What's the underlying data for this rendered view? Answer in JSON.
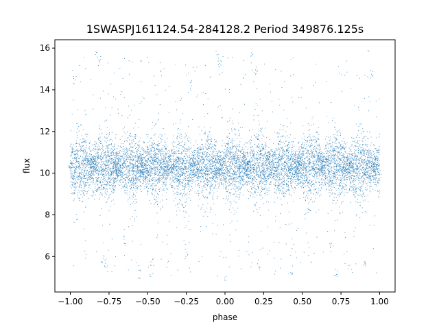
{
  "chart_data": {
    "type": "scatter",
    "title": "1SWASPJ161124.54-284128.2 Period 349876.125s",
    "xlabel": "phase",
    "ylabel": "flux",
    "xlim": [
      -1.1,
      1.1
    ],
    "ylim": [
      4.3,
      16.4
    ],
    "xticks": [
      -1.0,
      -0.75,
      -0.5,
      -0.25,
      0.0,
      0.25,
      0.5,
      0.75,
      1.0
    ],
    "xtick_labels": [
      "−1.00",
      "−0.75",
      "−0.50",
      "−0.25",
      "0.00",
      "0.25",
      "0.50",
      "0.75",
      "1.00"
    ],
    "yticks": [
      6,
      8,
      10,
      12,
      14,
      16
    ],
    "ytick_labels": [
      "6",
      "8",
      "10",
      "12",
      "14",
      "16"
    ],
    "grid": false,
    "legend": "none",
    "series": [
      {
        "color": "#1f77b4",
        "marker": "point",
        "x_range": [
          -1.0,
          1.0
        ],
        "baseline_flux": 10.3,
        "typical_flux_range": [
          8.5,
          12.3
        ],
        "full_flux_range": [
          4.8,
          15.9
        ],
        "points": [
          [
            -1.0,
            10.3
          ],
          [
            -0.97,
            14.5
          ],
          [
            -0.95,
            9.8
          ],
          [
            -0.91,
            11.6
          ],
          [
            -0.85,
            8.9
          ],
          [
            -0.83,
            15.8
          ],
          [
            -0.81,
            15.4
          ],
          [
            -0.79,
            5.9
          ],
          [
            -0.77,
            5.6
          ],
          [
            -0.76,
            10.6
          ],
          [
            -0.72,
            9.4
          ],
          [
            -0.65,
            6.7
          ],
          [
            -0.6,
            10.1
          ],
          [
            -0.55,
            5.2
          ],
          [
            -0.53,
            11.3
          ],
          [
            -0.47,
            5.8
          ],
          [
            -0.44,
            8.7
          ],
          [
            -0.4,
            10.4
          ],
          [
            -0.3,
            9.7
          ],
          [
            -0.25,
            6.1
          ],
          [
            -0.22,
            14.2
          ],
          [
            -0.2,
            10.9
          ],
          [
            -0.05,
            15.7
          ],
          [
            -0.03,
            15.2
          ],
          [
            0.0,
            4.9
          ],
          [
            0.02,
            10.2
          ],
          [
            0.1,
            9.6
          ],
          [
            0.17,
            15.8
          ],
          [
            0.2,
            14.9
          ],
          [
            0.22,
            5.6
          ],
          [
            0.27,
            10.8
          ],
          [
            0.35,
            9.2
          ],
          [
            0.43,
            5.3
          ],
          [
            0.48,
            10.5
          ],
          [
            0.55,
            8.3
          ],
          [
            0.6,
            11.7
          ],
          [
            0.68,
            6.4
          ],
          [
            0.72,
            5.3
          ],
          [
            0.78,
            10.0
          ],
          [
            0.84,
            9.1
          ],
          [
            0.9,
            5.5
          ],
          [
            0.93,
            15.9
          ],
          [
            0.95,
            14.7
          ],
          [
            0.97,
            10.6
          ],
          [
            1.0,
            9.9
          ]
        ]
      }
    ]
  }
}
